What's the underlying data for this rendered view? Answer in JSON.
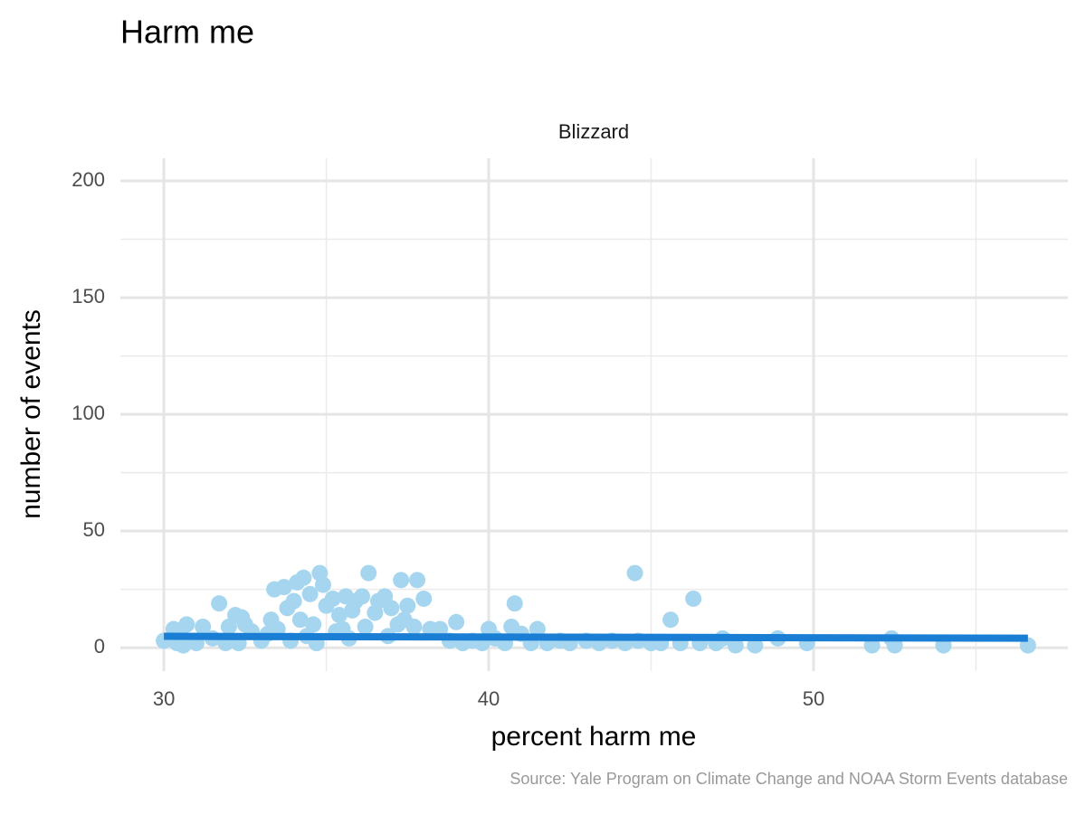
{
  "chart_data": {
    "type": "scatter",
    "title": "Harm me",
    "facet": "Blizzard",
    "x_label": "percent harm me",
    "y_label": "number of events",
    "caption": "Source: Yale Program on Climate Change and NOAA Storm Events database",
    "color": "#a6d6ef",
    "grid": true,
    "xlim": [
      28.66,
      57.83
    ],
    "ylim": [
      -10,
      209.7
    ],
    "xticks": [
      30,
      40,
      50
    ],
    "yticks": [
      0,
      50,
      100,
      150,
      200
    ],
    "x": [
      30.0,
      30.3,
      30.5,
      30.7,
      30.4,
      30.6,
      31.0,
      31.2,
      31.5,
      31.7,
      31.9,
      32.0,
      32.2,
      32.4,
      32.5,
      32.7,
      32.3,
      33.0,
      33.3,
      33.4,
      33.7,
      33.8,
      33.5,
      34.0,
      34.1,
      34.3,
      34.5,
      34.2,
      34.4,
      34.8,
      34.9,
      35.0,
      35.2,
      35.4,
      35.6,
      35.8,
      35.9,
      36.1,
      36.3,
      36.5,
      36.6,
      36.8,
      37.0,
      37.2,
      37.3,
      37.5,
      37.7,
      37.8,
      38.0,
      38.2,
      38.5,
      38.8,
      39.0,
      39.2,
      39.5,
      39.8,
      40.0,
      40.2,
      40.5,
      40.7,
      40.8,
      41.0,
      41.3,
      41.5,
      41.8,
      42.2,
      42.5,
      43.0,
      43.4,
      43.8,
      44.2,
      44.5,
      44.6,
      45.0,
      45.3,
      45.6,
      45.9,
      46.3,
      46.5,
      47.0,
      47.2,
      47.6,
      48.2,
      48.9,
      49.8,
      51.8,
      52.4,
      52.5,
      54.0,
      56.6,
      33.2,
      33.9,
      34.6,
      35.3,
      35.7,
      36.2,
      36.9,
      37.4,
      34.7,
      35.5
    ],
    "y": [
      3,
      8,
      6,
      10,
      2,
      1,
      2,
      9,
      4,
      19,
      2,
      9,
      14,
      13,
      10,
      7,
      2,
      3,
      12,
      25,
      26,
      17,
      8,
      20,
      28,
      30,
      23,
      12,
      5,
      32,
      27,
      18,
      21,
      14,
      22,
      16,
      20,
      22,
      32,
      15,
      20,
      22,
      17,
      10,
      29,
      18,
      9,
      29,
      21,
      8,
      8,
      3,
      11,
      2,
      3,
      2,
      8,
      4,
      2,
      9,
      19,
      6,
      2,
      8,
      2,
      3,
      2,
      3,
      2,
      3,
      2,
      32,
      3,
      2,
      2,
      12,
      2,
      21,
      2,
      2,
      4,
      1,
      1,
      4,
      2,
      1,
      4,
      1,
      1,
      1,
      6,
      3,
      10,
      7,
      4,
      9,
      5,
      12,
      2,
      8
    ],
    "trend": {
      "color": "#1a7fd4",
      "x": [
        30.0,
        56.6
      ],
      "y": [
        4.9,
        4.1
      ]
    }
  }
}
